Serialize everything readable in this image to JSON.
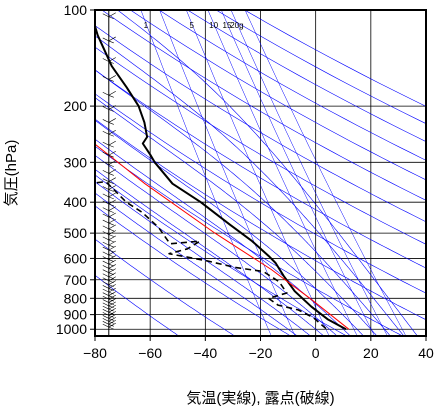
{
  "chart_data": {
    "type": "line",
    "title": "",
    "xlabel": "気温(実線), 露点(破線)",
    "ylabel": "気圧(hPa)",
    "xlim": [
      -80,
      40
    ],
    "ylim": [
      1050,
      100
    ],
    "y_scale": "log",
    "x_ticks": [
      -80,
      -60,
      -40,
      -20,
      0,
      20,
      40
    ],
    "x_tick_labels": [
      "−80",
      "−60",
      "−40",
      "−20",
      "0",
      "20",
      "40"
    ],
    "y_ticks": [
      1000,
      900,
      800,
      700,
      600,
      500,
      400,
      300,
      200,
      100
    ],
    "y_tick_labels": [
      "1000",
      "900",
      "800",
      "700",
      "600",
      "500",
      "400",
      "300",
      "200",
      "100"
    ],
    "mixing_ratio_labels": [
      {
        "value": 1,
        "text": "1"
      },
      {
        "value": 5,
        "text": "5"
      },
      {
        "value": 10,
        "text": "10"
      },
      {
        "value": 15,
        "text": "15"
      },
      {
        "value": 20,
        "text": "20g"
      }
    ],
    "series": [
      {
        "style": "solid",
        "color": "#000000",
        "points": [
          [
            -60,
            100
          ],
          [
            -59,
            120
          ],
          [
            -56,
            150
          ],
          [
            -52,
            175
          ],
          [
            -49,
            200
          ],
          [
            -48,
            225
          ],
          [
            -48,
            250
          ],
          [
            -50,
            262
          ],
          [
            -48,
            285
          ],
          [
            -47,
            300
          ],
          [
            -42,
            350
          ],
          [
            -33,
            400
          ],
          [
            -24,
            470
          ],
          [
            -17,
            530
          ],
          [
            -12,
            590
          ],
          [
            -10,
            620
          ],
          [
            -8,
            680
          ],
          [
            -5,
            760
          ],
          [
            0,
            850
          ],
          [
            5,
            930
          ],
          [
            11,
            1000
          ]
        ]
      },
      {
        "style": "dashed",
        "color": "#000000",
        "points": [
          [
            -73,
            350
          ],
          [
            -66,
            345
          ],
          [
            -60,
            400
          ],
          [
            -55,
            430
          ],
          [
            -50,
            480
          ],
          [
            -47,
            540
          ],
          [
            -36,
            530
          ],
          [
            -41,
            560
          ],
          [
            -48,
            580
          ],
          [
            -35,
            610
          ],
          [
            -25,
            640
          ],
          [
            -15,
            660
          ],
          [
            -10,
            710
          ],
          [
            -8,
            770
          ],
          [
            -15,
            800
          ],
          [
            -12,
            840
          ],
          [
            -5,
            870
          ],
          [
            0,
            920
          ],
          [
            4,
            1000
          ]
        ]
      },
      {
        "style": "parcel",
        "color": "#ff0000",
        "points": [
          [
            12,
            1000
          ],
          [
            0,
            800
          ],
          [
            -12,
            650
          ],
          [
            -30,
            500
          ],
          [
            -52,
            350
          ],
          [
            -68,
            260
          ],
          [
            -80,
            215
          ]
        ]
      }
    ],
    "dry_adiabat_thetas_k": [
      220,
      240,
      260,
      280,
      300,
      320,
      340,
      360,
      380,
      400,
      420,
      440,
      460,
      480,
      500,
      520
    ],
    "moist_adiabat_thetaw_c": [
      -10,
      -5,
      0,
      5,
      10,
      15,
      20,
      25,
      30,
      35
    ],
    "mixing_ratios_gkg": [
      1,
      2,
      5,
      10,
      15,
      20,
      30
    ],
    "grid_line_color": "#0000ff",
    "wind_barbs_column_x": -75
  }
}
